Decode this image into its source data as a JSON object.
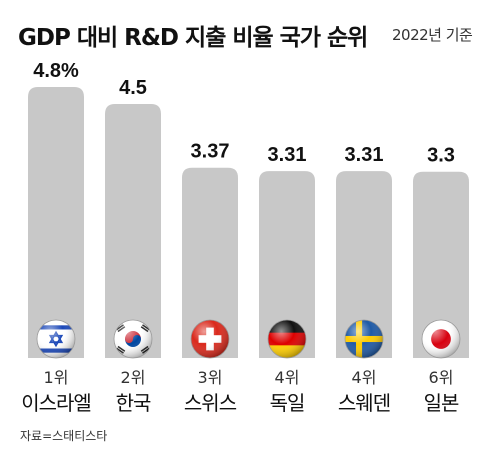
{
  "title": "GDP 대비 R&D 지출 비율 국가 순위",
  "subtitle": "2022년 기준",
  "source": "자료=스태티스타",
  "chart_data": {
    "type": "bar",
    "title": "GDP 대비 R&D 지출 비율 국가 순위",
    "subtitle": "2022년 기준",
    "categories": [
      "이스라엘",
      "한국",
      "스위스",
      "독일",
      "스웨덴",
      "일본"
    ],
    "ranks": [
      "1위",
      "2위",
      "3위",
      "4위",
      "4위",
      "6위"
    ],
    "values": [
      4.8,
      4.5,
      3.37,
      3.31,
      3.31,
      3.3
    ],
    "value_labels": [
      "4.8%",
      "4.5",
      "3.37",
      "3.31",
      "3.31",
      "3.3"
    ],
    "flags": [
      "israel-flag",
      "south-korea-flag",
      "switzerland-flag",
      "germany-flag",
      "sweden-flag",
      "japan-flag"
    ],
    "bar_color": "#c8c8c8",
    "ylim": [
      0,
      4.8
    ],
    "grid": false,
    "legend": "none"
  }
}
